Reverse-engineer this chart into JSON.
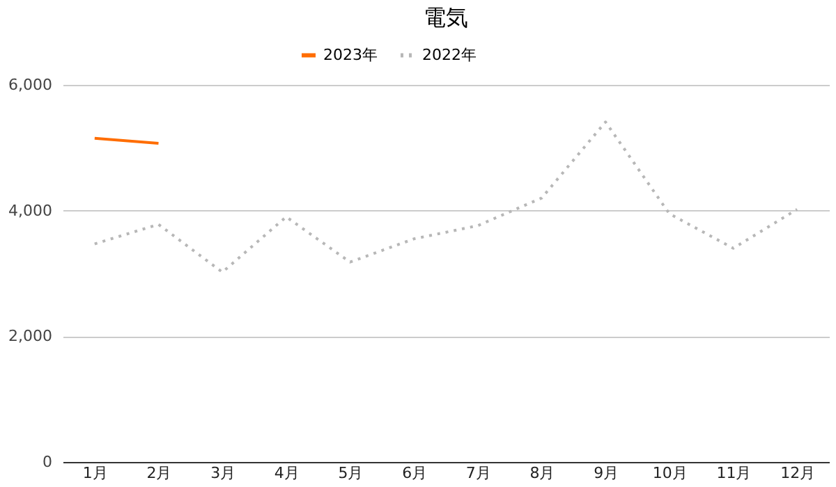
{
  "chart_data": {
    "type": "line",
    "title": "電気",
    "categories": [
      "1月",
      "2月",
      "3月",
      "4月",
      "5月",
      "6月",
      "7月",
      "8月",
      "9月",
      "10月",
      "11月",
      "12月"
    ],
    "series": [
      {
        "name": "2023年",
        "color": "#ff6d01",
        "line_style": "solid",
        "values": [
          5150,
          5070,
          null,
          null,
          null,
          null,
          null,
          null,
          null,
          null,
          null,
          null
        ]
      },
      {
        "name": "2022年",
        "color": "#b7b7b7",
        "line_style": "dotted",
        "values": [
          3470,
          3780,
          3020,
          3900,
          3180,
          3550,
          3760,
          4200,
          5410,
          3950,
          3400,
          4020
        ]
      }
    ],
    "ylim": [
      0,
      6000
    ],
    "yticks": [
      0,
      {
        "value": 2000,
        "label": "2,000"
      },
      {
        "value": 4000,
        "label": "4,000"
      },
      {
        "value": 6000,
        "label": "6,000"
      }
    ],
    "grid": "y",
    "legend": "top",
    "marker": "none"
  }
}
